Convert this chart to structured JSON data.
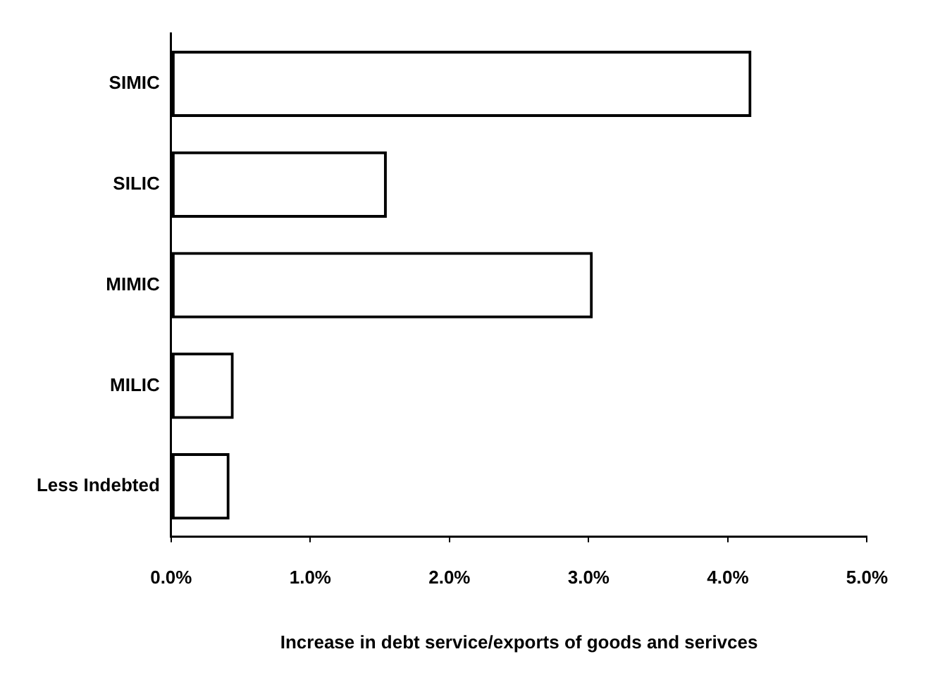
{
  "chart_data": {
    "type": "bar",
    "orientation": "horizontal",
    "xlabel": "Increase in debt service/exports of goods and serivces",
    "categories": [
      "SIMIC",
      "SILIC",
      "MIMIC",
      "MILIC",
      "Less Indebted"
    ],
    "values": [
      4.17,
      1.55,
      3.03,
      0.45,
      0.42
    ],
    "color": "#000000",
    "xlim": [
      0,
      5
    ],
    "xticks": [
      {
        "value": 0,
        "label": "0.0%"
      },
      {
        "value": 1,
        "label": "1.0%"
      },
      {
        "value": 2,
        "label": "2.0%"
      },
      {
        "value": 3,
        "label": "3.0%"
      },
      {
        "value": 4,
        "label": "4.0%"
      },
      {
        "value": 5,
        "label": "5.0%"
      }
    ],
    "grid": false,
    "legend": false
  }
}
